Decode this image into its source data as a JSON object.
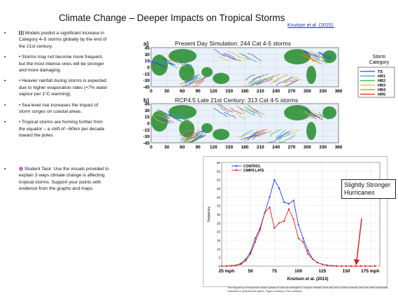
{
  "title": "Climate Change – Deeper Impacts on Tropical Storms",
  "citation": "Knutson et al. (2015).",
  "bullets": [
    {
      "icon": "bar-chart-icon",
      "text": "Models predict a significant increase in Category 4–5 storms globally by the end of the 21st century."
    },
    {
      "icon": "",
      "text": "• Storms may not become more frequent, but the most intense ones will be stronger and more damaging."
    },
    {
      "icon": "",
      "text": "• Heavier rainfall during storms is expected due to higher evaporation rates (+7% water vapour per 1°C warming)."
    },
    {
      "icon": "",
      "text": "• Sea level rise increases the impact of storm surges on coastal areas."
    },
    {
      "icon": "",
      "text": "• Tropical storms are forming further from the equator – a shift of ~60km per decade toward the poles."
    }
  ],
  "task": {
    "icon": "brain-icon",
    "text": "Student Task: Use the visuals provided to explain 3 ways climate change is affecting tropical storms. Support your points with evidence from the graphs and maps."
  },
  "maps": {
    "panel_a_label": "a)",
    "panel_a_title": "Present Day Simulation:  244 Cat 4-5 storms",
    "panel_b_label": "b)",
    "panel_b_title": "RCP4.5 Late 21st Century:  313 Cat 4-5 storms",
    "lat_ticks": [
      "45",
      "30",
      "15",
      "0",
      "-15",
      "-30",
      "-45"
    ],
    "lon_ticks": [
      "0",
      "30",
      "60",
      "90",
      "120",
      "150",
      "180",
      "210",
      "240",
      "270",
      "300",
      "330",
      "360"
    ],
    "legend_title": "Storm Category",
    "legend": [
      {
        "label": "TS",
        "color": "#2a4fd8"
      },
      {
        "label": "HR1",
        "color": "#27a1d8"
      },
      {
        "label": "HR2",
        "color": "#2aa84a"
      },
      {
        "label": "HR3",
        "color": "#d9c21e"
      },
      {
        "label": "HR4",
        "color": "#e37a1b"
      },
      {
        "label": "HR5",
        "color": "#d82222"
      }
    ]
  },
  "graph_text": {
    "callout": "Slightly Stronger Hurricanes",
    "source": "Knutson et al. (2013)",
    "caption": "The frequency of maximum winds speeds of various strengths in today's climate (blue line) and a future climate (red line) with substantial increases in greenhouse gases. Figure courtesy Chris Landsea."
  },
  "chart_data": {
    "type": "line",
    "title": "",
    "xlabel": "",
    "ylabel": "frequency",
    "x": [
      20,
      25,
      30,
      35,
      40,
      45,
      50,
      55,
      60,
      65,
      70,
      75,
      80,
      85,
      90,
      95,
      100,
      105,
      110,
      115,
      120,
      125,
      130,
      135,
      140,
      145,
      150,
      155,
      160,
      165,
      170,
      175,
      180
    ],
    "xticks": [
      25,
      50,
      75,
      100,
      125,
      150,
      175
    ],
    "xtick_labels": [
      "25 mph",
      "50",
      "75",
      "100",
      "125",
      "150",
      "175 mph"
    ],
    "xlim": [
      20,
      185
    ],
    "ylim": [
      0,
      60
    ],
    "yticks": [
      0,
      5,
      10,
      15,
      20,
      25,
      30,
      35,
      40,
      45,
      50,
      55,
      60
    ],
    "grid": true,
    "legend_position": "top-left",
    "series": [
      {
        "name": "CONTROL",
        "color": "#1f3fe0",
        "values": [
          0,
          0,
          0.2,
          0.5,
          1.5,
          4,
          8,
          16,
          22,
          31,
          40,
          50,
          45,
          37,
          36,
          38,
          24,
          16,
          9,
          4,
          2,
          1,
          0.5,
          0.2,
          0,
          0,
          0,
          0,
          0,
          0,
          0,
          0,
          0
        ]
      },
      {
        "name": "CMIP5-LATE",
        "color": "#e01f1f",
        "values": [
          0,
          0,
          0.2,
          0.5,
          1,
          3,
          7,
          14,
          21,
          31,
          34,
          22,
          25,
          26,
          33,
          27,
          16,
          14,
          7,
          4,
          2,
          1,
          0.5,
          0.2,
          0,
          0,
          0,
          0,
          0,
          0,
          0,
          0,
          0
        ]
      }
    ]
  }
}
